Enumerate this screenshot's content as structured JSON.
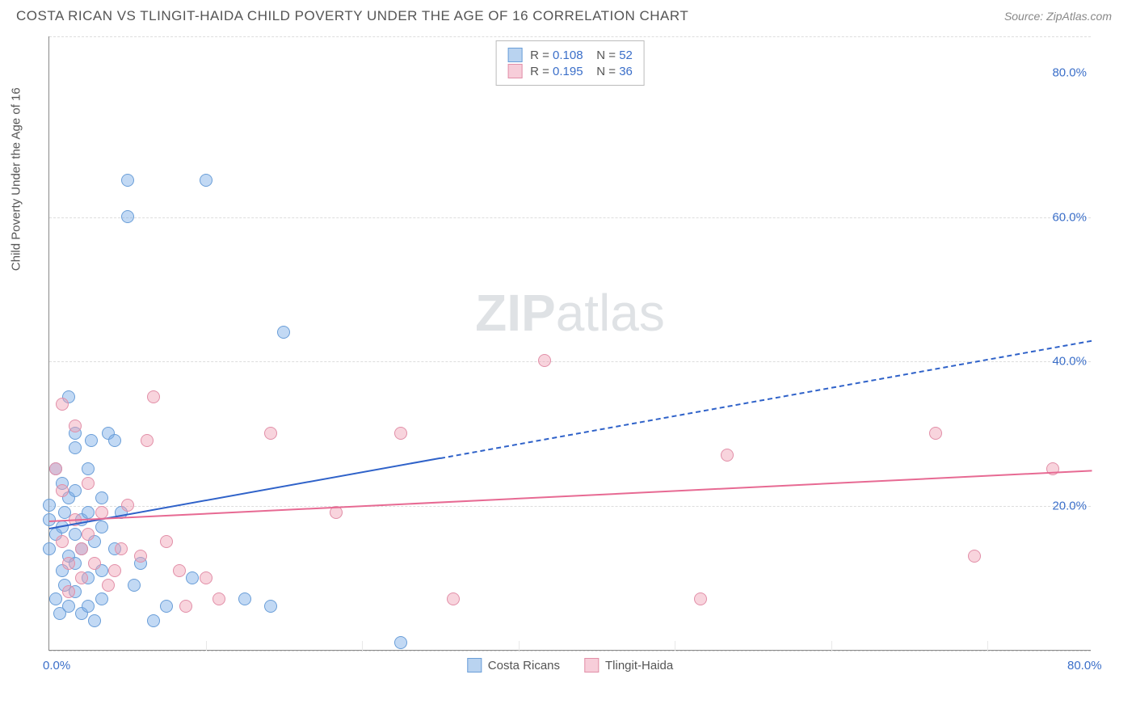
{
  "header": {
    "title": "COSTA RICAN VS TLINGIT-HAIDA CHILD POVERTY UNDER THE AGE OF 16 CORRELATION CHART",
    "source_prefix": "Source: ",
    "source_name": "ZipAtlas.com"
  },
  "watermark": {
    "part1": "ZIP",
    "part2": "atlas"
  },
  "chart": {
    "type": "scatter",
    "y_axis_label": "Child Poverty Under the Age of 16",
    "xlim": [
      0,
      80
    ],
    "ylim": [
      0,
      85
    ],
    "x_ticks": [
      {
        "v": 0,
        "l": "0.0%"
      },
      {
        "v": 80,
        "l": "80.0%"
      }
    ],
    "y_ticks": [
      {
        "v": 20,
        "l": "20.0%"
      },
      {
        "v": 40,
        "l": "40.0%"
      },
      {
        "v": 60,
        "l": "60.0%"
      },
      {
        "v": 80,
        "l": "80.0%"
      }
    ],
    "x_gridlines_at": [
      12,
      24,
      36,
      48,
      60,
      72
    ],
    "y_gridlines_at": [
      0,
      20,
      40,
      60,
      85
    ],
    "background_color": "#ffffff",
    "grid_color_h": "#dddddd",
    "grid_color_v": "#e8e8e8",
    "axis_color": "#888888",
    "tick_label_color": "#3b6fc9",
    "tick_fontsize": 15,
    "marker_size": 16,
    "watermark_color": "rgba(140,150,160,0.28)",
    "watermark_fontsize": 64,
    "series": [
      {
        "name": "Costa Ricans",
        "color_fill": "rgba(120,170,230,0.45)",
        "color_stroke": "#6a9ed8",
        "swatch_fill": "#b9d3f0",
        "swatch_border": "#6a9ed8",
        "R": "0.108",
        "N": "52",
        "regression": {
          "x1": 0,
          "y1": 17,
          "x2": 80,
          "y2": 43,
          "solid_until_x": 30,
          "color": "#2f62c9",
          "width": 2.5,
          "dash": "6,5"
        },
        "points": [
          [
            0,
            14
          ],
          [
            0,
            18
          ],
          [
            0,
            20
          ],
          [
            0.5,
            25
          ],
          [
            0.5,
            16
          ],
          [
            0.5,
            7
          ],
          [
            0.8,
            5
          ],
          [
            1,
            23
          ],
          [
            1,
            17
          ],
          [
            1,
            11
          ],
          [
            1.2,
            9
          ],
          [
            1.2,
            19
          ],
          [
            1.5,
            21
          ],
          [
            1.5,
            13
          ],
          [
            1.5,
            6
          ],
          [
            1.5,
            35
          ],
          [
            2,
            30
          ],
          [
            2,
            28
          ],
          [
            2,
            22
          ],
          [
            2,
            16
          ],
          [
            2,
            12
          ],
          [
            2,
            8
          ],
          [
            2.5,
            18
          ],
          [
            2.5,
            5
          ],
          [
            2.5,
            14
          ],
          [
            3,
            10
          ],
          [
            3,
            19
          ],
          [
            3,
            25
          ],
          [
            3,
            6
          ],
          [
            3.2,
            29
          ],
          [
            3.5,
            4
          ],
          [
            3.5,
            15
          ],
          [
            4,
            21
          ],
          [
            4,
            17
          ],
          [
            4,
            11
          ],
          [
            4,
            7
          ],
          [
            4.5,
            30
          ],
          [
            5,
            29
          ],
          [
            5,
            14
          ],
          [
            5.5,
            19
          ],
          [
            6,
            60
          ],
          [
            6,
            65
          ],
          [
            6.5,
            9
          ],
          [
            7,
            12
          ],
          [
            8,
            4
          ],
          [
            9,
            6
          ],
          [
            11,
            10
          ],
          [
            12,
            65
          ],
          [
            15,
            7
          ],
          [
            18,
            44
          ],
          [
            17,
            6
          ],
          [
            27,
            1
          ]
        ]
      },
      {
        "name": "Tlingit-Haida",
        "color_fill": "rgba(240,160,180,0.45)",
        "color_stroke": "#e28fa8",
        "swatch_fill": "#f7cdd9",
        "swatch_border": "#e28fa8",
        "R": "0.195",
        "N": "36",
        "regression": {
          "x1": 0,
          "y1": 18,
          "x2": 80,
          "y2": 25,
          "solid_until_x": 80,
          "color": "#e76a93",
          "width": 2.5
        },
        "points": [
          [
            0.5,
            25
          ],
          [
            1,
            34
          ],
          [
            1,
            22
          ],
          [
            1,
            15
          ],
          [
            1.5,
            12
          ],
          [
            1.5,
            8
          ],
          [
            2,
            31
          ],
          [
            2,
            18
          ],
          [
            2.5,
            14
          ],
          [
            2.5,
            10
          ],
          [
            3,
            23
          ],
          [
            3,
            16
          ],
          [
            3.5,
            12
          ],
          [
            4,
            19
          ],
          [
            4.5,
            9
          ],
          [
            5,
            11
          ],
          [
            5.5,
            14
          ],
          [
            6,
            20
          ],
          [
            7,
            13
          ],
          [
            7.5,
            29
          ],
          [
            8,
            35
          ],
          [
            9,
            15
          ],
          [
            10,
            11
          ],
          [
            10.5,
            6
          ],
          [
            12,
            10
          ],
          [
            13,
            7
          ],
          [
            17,
            30
          ],
          [
            22,
            19
          ],
          [
            27,
            30
          ],
          [
            31,
            7
          ],
          [
            38,
            40
          ],
          [
            50,
            7
          ],
          [
            52,
            27
          ],
          [
            68,
            30
          ],
          [
            71,
            13
          ],
          [
            77,
            25
          ]
        ]
      }
    ],
    "legend_top": {
      "r_label": "R =",
      "n_label": "N ="
    },
    "legend_bottom_labels": [
      "Costa Ricans",
      "Tlingit-Haida"
    ]
  }
}
